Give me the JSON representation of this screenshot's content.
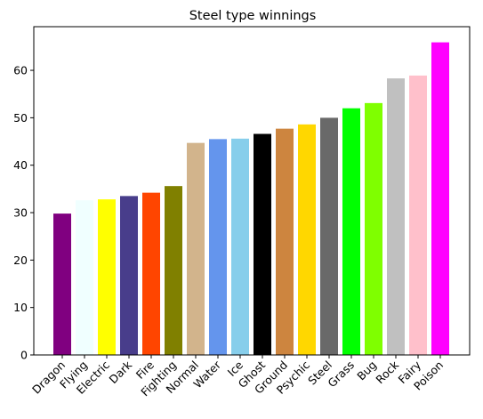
{
  "chart_data": {
    "type": "bar",
    "title": "Steel type winnings",
    "xlabel": "",
    "ylabel": "",
    "categories": [
      "Dragon",
      "Flying",
      "Electric",
      "Dark",
      "Fire",
      "Fighting",
      "Normal",
      "Water",
      "Ice",
      "Ghost",
      "Ground",
      "Psychic",
      "Steel",
      "Grass",
      "Bug",
      "Rock",
      "Fairy",
      "Poison"
    ],
    "values": [
      29.8,
      32.6,
      32.8,
      33.5,
      34.2,
      35.6,
      44.7,
      45.5,
      45.6,
      46.6,
      47.7,
      48.6,
      50.0,
      52.0,
      53.1,
      58.3,
      58.9,
      65.9
    ],
    "colors": [
      "#800080",
      "#f0ffff",
      "#ffff00",
      "#483d8b",
      "#ff4500",
      "#808000",
      "#d2b48c",
      "#6495ed",
      "#87ceeb",
      "#000000",
      "#cd853f",
      "#ffd700",
      "#696969",
      "#00ff00",
      "#7fff00",
      "#c0c0c0",
      "#ffc0cb",
      "#ff00ff"
    ],
    "ylim": [
      0,
      69.2
    ],
    "yticks": [
      0,
      10,
      20,
      30,
      40,
      50,
      60
    ],
    "grid": false,
    "legend": "none"
  }
}
